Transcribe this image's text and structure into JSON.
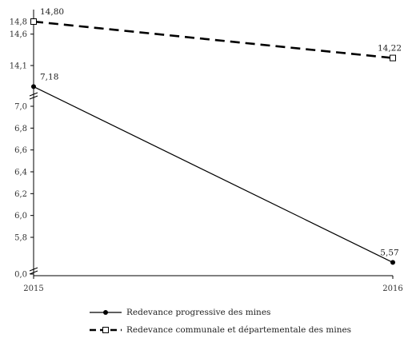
{
  "chart_data": {
    "type": "line",
    "x": [
      "2015",
      "2016"
    ],
    "series": [
      {
        "name": "Redevance progressive des mines",
        "values": [
          7.18,
          5.57
        ],
        "labels": [
          "7,18",
          "5,57"
        ],
        "line_style": "solid",
        "marker": "filled-circle",
        "color": "#000000"
      },
      {
        "name": "Redevance communale et départementale des mines",
        "values": [
          14.8,
          14.22
        ],
        "labels": [
          "14,80",
          "14,22"
        ],
        "line_style": "dashed",
        "marker": "open-square",
        "color": "#000000"
      }
    ],
    "y_axis": {
      "broken": true,
      "lower_segment": {
        "ticks": [
          "0,0"
        ]
      },
      "middle_segment": {
        "ticks": [
          "5,8",
          "6,0",
          "6,2",
          "6,4",
          "6,6",
          "6,8",
          "7,0"
        ],
        "range": [
          5.8,
          7.0
        ]
      },
      "upper_segment": {
        "ticks": [
          "14,1",
          "14,6",
          "14,8"
        ],
        "range": [
          14.1,
          14.8
        ]
      }
    },
    "title": "",
    "xlabel": "",
    "ylabel": "",
    "grid": false,
    "legend_position": "bottom"
  }
}
